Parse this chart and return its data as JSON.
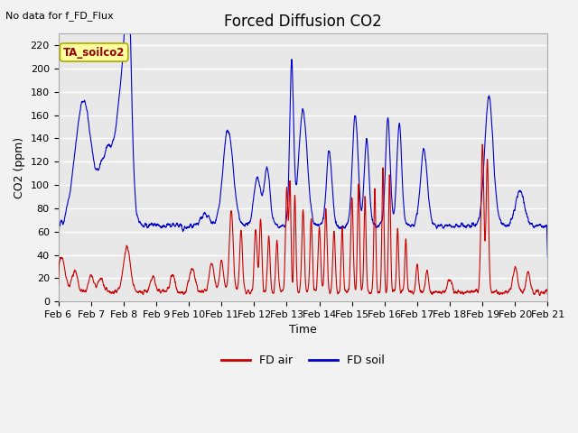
{
  "title": "Forced Diffusion CO2",
  "top_left_text": "No data for f_FD_Flux",
  "ylabel": "CO2 (ppm)",
  "xlabel": "Time",
  "ylim": [
    0,
    230
  ],
  "yticks": [
    0,
    20,
    40,
    60,
    80,
    100,
    120,
    140,
    160,
    180,
    200,
    220
  ],
  "xtick_labels": [
    "Feb 6",
    "Feb 7",
    "Feb 8",
    "Feb 9",
    "Feb 10",
    "Feb 11",
    "Feb 12",
    "Feb 13",
    "Feb 14",
    "Feb 15",
    "Feb 16",
    "Feb 17",
    "Feb 18",
    "Feb 19",
    "Feb 20",
    "Feb 21"
  ],
  "annotation_box_text": "TA_soilco2",
  "annotation_box_color": "#FFFFA0",
  "annotation_box_edgecolor": "#AAAA00",
  "line_air_color": "#CC0000",
  "line_soil_color": "#0000CC",
  "legend_air": "FD air",
  "legend_soil": "FD soil",
  "background_color": "#E8E8E8",
  "grid_color": "#FFFFFF",
  "title_fontsize": 12,
  "label_fontsize": 9,
  "tick_fontsize": 8
}
